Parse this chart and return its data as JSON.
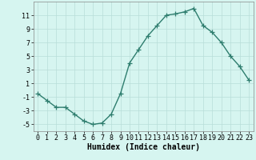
{
  "x": [
    0,
    1,
    2,
    3,
    4,
    5,
    6,
    7,
    8,
    9,
    10,
    11,
    12,
    13,
    14,
    15,
    16,
    17,
    18,
    19,
    20,
    21,
    22,
    23
  ],
  "y": [
    -0.5,
    -1.5,
    -2.5,
    -2.5,
    -3.5,
    -4.5,
    -5.0,
    -4.8,
    -3.5,
    -0.5,
    4.0,
    6.0,
    8.0,
    9.5,
    11.0,
    11.2,
    11.5,
    12.0,
    9.5,
    8.5,
    7.0,
    5.0,
    3.5,
    1.5
  ],
  "line_color": "#2e7d6e",
  "marker": "+",
  "marker_size": 4,
  "bg_color": "#d6f5f0",
  "grid_color": "#b8ddd8",
  "xlabel": "Humidex (Indice chaleur)",
  "xlim": [
    -0.5,
    23.5
  ],
  "ylim": [
    -6,
    13
  ],
  "xticks": [
    0,
    1,
    2,
    3,
    4,
    5,
    6,
    7,
    8,
    9,
    10,
    11,
    12,
    13,
    14,
    15,
    16,
    17,
    18,
    19,
    20,
    21,
    22,
    23
  ],
  "yticks": [
    -5,
    -3,
    -1,
    1,
    3,
    5,
    7,
    9,
    11
  ],
  "xlabel_fontsize": 7,
  "tick_fontsize": 6,
  "line_width": 1.0
}
